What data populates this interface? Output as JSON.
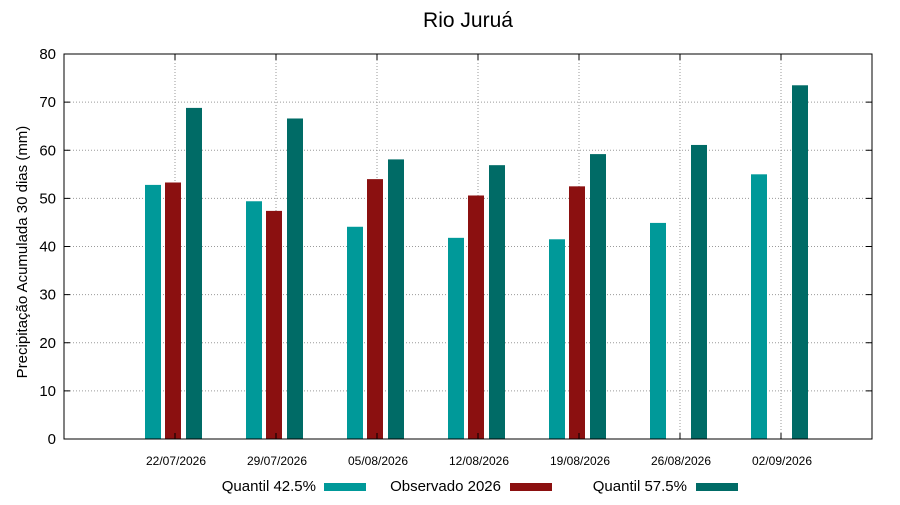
{
  "chart_data": {
    "type": "bar",
    "title": "Rio Juruá",
    "xlabel": "",
    "ylabel": "Precipitação Acumulada 30 dias (mm)",
    "ylim": [
      0,
      80
    ],
    "yticks": [
      "0",
      "10",
      "20",
      "30",
      "40",
      "50",
      "60",
      "70",
      "80"
    ],
    "grid": true,
    "legend_position": "bottom",
    "categories": [
      "22/07/2026",
      "29/07/2026",
      "05/08/2026",
      "12/08/2026",
      "19/08/2026",
      "26/08/2026",
      "02/09/2026"
    ],
    "series": [
      {
        "name": "Quantil 42.5%",
        "color": "#009999",
        "values": [
          52.8,
          49.4,
          44.1,
          41.8,
          41.5,
          44.9,
          55.0
        ]
      },
      {
        "name": "Observado 2026",
        "color": "#8b1010",
        "values": [
          53.3,
          47.4,
          54.0,
          50.6,
          52.5,
          null,
          null
        ]
      },
      {
        "name": "Quantil 57.5%",
        "color": "#006b66",
        "values": [
          68.8,
          66.6,
          58.1,
          56.9,
          59.2,
          61.1,
          73.5
        ]
      }
    ]
  }
}
